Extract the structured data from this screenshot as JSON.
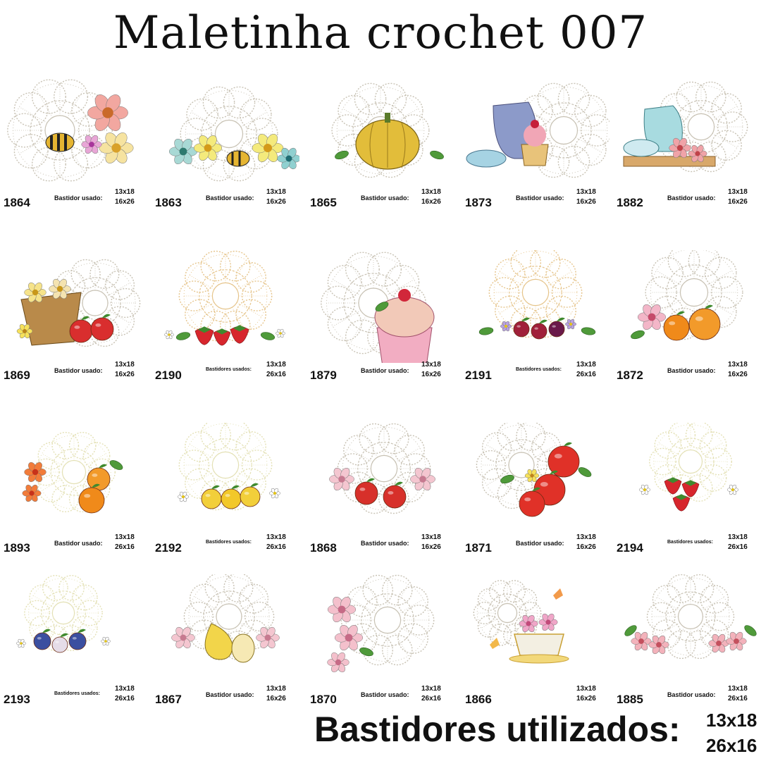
{
  "title": "Maletinha crochet 007",
  "footer": {
    "label": "Bastidores utilizados:",
    "size1": "13x18",
    "size2": "26x16"
  },
  "items": [
    {
      "code": "1864",
      "hoop_label": "Bastidor usado:",
      "size1": "13x18",
      "size2": "16x26",
      "motif": "bee-flowers"
    },
    {
      "code": "1863",
      "hoop_label": "Bastidor usado:",
      "size1": "13x18",
      "size2": "16x26",
      "motif": "bee-honeycomb"
    },
    {
      "code": "1865",
      "hoop_label": "Bastidor usado:",
      "size1": "13x18",
      "size2": "16x26",
      "motif": "pumpkin"
    },
    {
      "code": "1873",
      "hoop_label": "Bastidor usado:",
      "size1": "13x18",
      "size2": "16x26",
      "motif": "teapot-cupcake"
    },
    {
      "code": "1882",
      "hoop_label": "Bastidor usado:",
      "size1": "13x18",
      "size2": "16x26",
      "motif": "teapot-roses"
    },
    {
      "code": "1869",
      "hoop_label": "Bastidor usado:",
      "size1": "13x18",
      "size2": "16x26",
      "motif": "basket-apples"
    },
    {
      "code": "2190",
      "hoop_label": "Bastidores usados:",
      "size1": "13x18",
      "size2": "26x16",
      "motif": "strawberries"
    },
    {
      "code": "1879",
      "hoop_label": "Bastidor usado:",
      "size1": "13x18",
      "size2": "16x26",
      "motif": "cupcake"
    },
    {
      "code": "2191",
      "hoop_label": "Bastidores usados:",
      "size1": "13x18",
      "size2": "26x16",
      "motif": "berries"
    },
    {
      "code": "1872",
      "hoop_label": "Bastidor usado:",
      "size1": "13x18",
      "size2": "16x26",
      "motif": "oranges-rose"
    },
    {
      "code": "1893",
      "hoop_label": "Bastidor usado:",
      "size1": "13x18",
      "size2": "26x16",
      "motif": "oranges-branch"
    },
    {
      "code": "2192",
      "hoop_label": "Bastidores usados:",
      "size1": "13x18",
      "size2": "26x16",
      "motif": "lemons"
    },
    {
      "code": "1868",
      "hoop_label": "Bastidor usado:",
      "size1": "13x18",
      "size2": "16x26",
      "motif": "apples-roses"
    },
    {
      "code": "1871",
      "hoop_label": "Bastidor usado:",
      "size1": "13x18",
      "size2": "16x26",
      "motif": "apples-big"
    },
    {
      "code": "2194",
      "hoop_label": "Bastidores usados:",
      "size1": "13x18",
      "size2": "26x16",
      "motif": "strawberries-2"
    },
    {
      "code": "2193",
      "hoop_label": "Bastidores usados:",
      "size1": "13x18",
      "size2": "26x16",
      "motif": "blueberries"
    },
    {
      "code": "1867",
      "hoop_label": "Bastidor usado:",
      "size1": "13x18",
      "size2": "16x26",
      "motif": "pears-roses"
    },
    {
      "code": "1870",
      "hoop_label": "Bastidor usado:",
      "size1": "13x18",
      "size2": "26x16",
      "motif": "pink-roses"
    },
    {
      "code": "1866",
      "hoop_label": "",
      "size1": "13x18",
      "size2": "16x26",
      "motif": "teacup-flowers"
    },
    {
      "code": "1885",
      "hoop_label": "Bastidor usado:",
      "size1": "13x18",
      "size2": "26x16",
      "motif": "roses-pair"
    }
  ]
}
